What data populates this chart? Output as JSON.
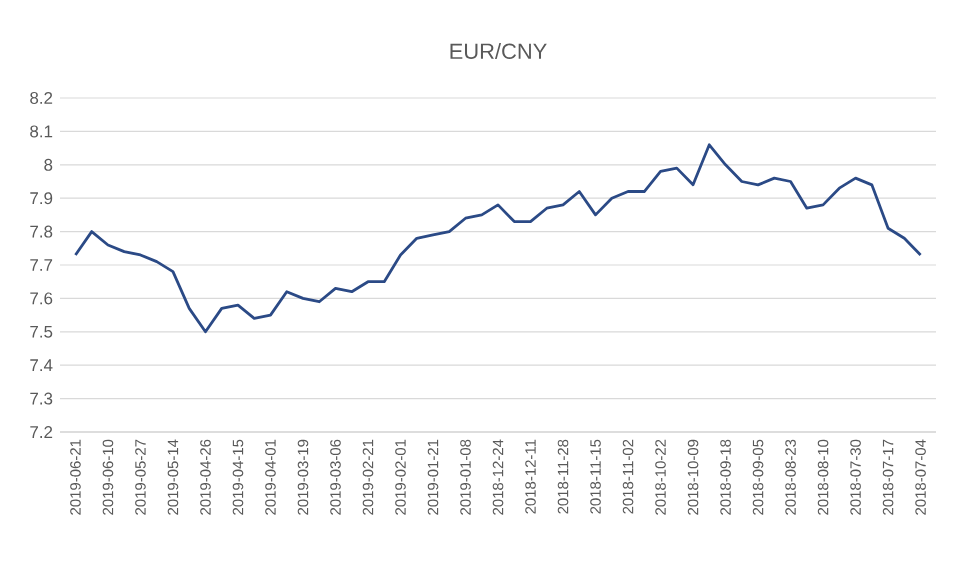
{
  "chart_data": {
    "type": "line",
    "title": "EUR/CNY",
    "categories": [
      "2019-06-21",
      null,
      "2019-06-10",
      null,
      "2019-05-27",
      null,
      "2019-05-14",
      null,
      "2019-04-26",
      null,
      "2019-04-15",
      null,
      "2019-04-01",
      null,
      "2019-03-19",
      null,
      "2019-03-06",
      null,
      "2019-02-21",
      null,
      "2019-02-01",
      null,
      "2019-01-21",
      null,
      "2019-01-08",
      null,
      "2018-12-24",
      null,
      "2018-12-11",
      null,
      "2018-11-28",
      null,
      "2018-11-15",
      null,
      "2018-11-02",
      null,
      "2018-10-22",
      null,
      "2018-10-09",
      null,
      "2018-09-18",
      null,
      "2018-09-05",
      null,
      "2018-08-23",
      null,
      "2018-08-10",
      null,
      "2018-07-30",
      null,
      "2018-07-17",
      null,
      "2018-07-04"
    ],
    "series": [
      {
        "color": "#2b4a86",
        "values": [
          7.73,
          7.8,
          7.76,
          7.74,
          7.73,
          7.71,
          7.68,
          7.57,
          7.5,
          7.57,
          7.58,
          7.54,
          7.55,
          7.62,
          7.6,
          7.59,
          7.63,
          7.62,
          7.65,
          7.65,
          7.73,
          7.78,
          7.79,
          7.8,
          7.84,
          7.85,
          7.88,
          7.83,
          7.83,
          7.87,
          7.88,
          7.92,
          7.85,
          7.9,
          7.92,
          7.92,
          7.98,
          7.99,
          7.94,
          8.06,
          8.0,
          7.95,
          7.94,
          7.96,
          7.95,
          7.87,
          7.88,
          7.93,
          7.96,
          7.94,
          7.81,
          7.78,
          7.73
        ]
      }
    ],
    "ylim": [
      7.2,
      8.2
    ],
    "yticks": [
      7.2,
      7.3,
      7.4,
      7.5,
      7.6,
      7.7,
      7.8,
      7.9,
      8,
      8.1,
      8.2
    ],
    "grid": "y"
  }
}
